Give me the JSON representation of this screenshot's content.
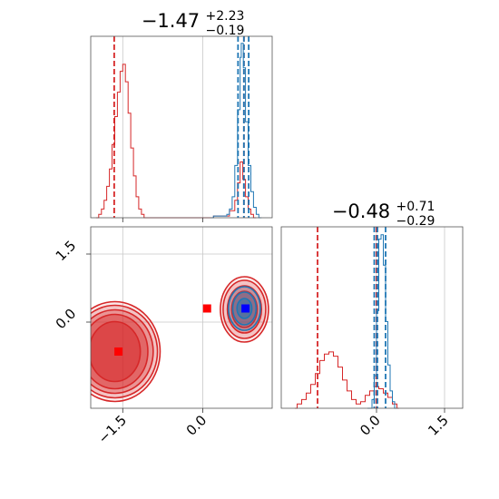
{
  "chart_data": [
    {
      "type": "histogram",
      "panel": "marginal-param-1",
      "title_value": "−1.47",
      "title_plus": "+2.23",
      "title_minus": "−0.19",
      "xlim": [
        -2.1,
        1.3
      ],
      "grid": true,
      "series": [
        {
          "color": "#d62728",
          "bins": [
            [
              -2.0,
              0.0
            ],
            [
              -1.95,
              0.02
            ],
            [
              -1.9,
              0.05
            ],
            [
              -1.85,
              0.1
            ],
            [
              -1.8,
              0.18
            ],
            [
              -1.75,
              0.28
            ],
            [
              -1.7,
              0.42
            ],
            [
              -1.65,
              0.58
            ],
            [
              -1.6,
              0.72
            ],
            [
              -1.55,
              0.84
            ],
            [
              -1.5,
              0.88
            ],
            [
              -1.45,
              0.78
            ],
            [
              -1.4,
              0.6
            ],
            [
              -1.35,
              0.4
            ],
            [
              -1.3,
              0.24
            ],
            [
              -1.25,
              0.12
            ],
            [
              -1.2,
              0.05
            ],
            [
              -1.15,
              0.02
            ],
            [
              -1.1,
              0.0
            ],
            [
              0.1,
              0.0
            ],
            [
              0.2,
              0.01
            ],
            [
              0.5,
              0.04
            ],
            [
              0.6,
              0.1
            ],
            [
              0.65,
              0.2
            ],
            [
              0.7,
              0.32
            ],
            [
              0.75,
              0.22
            ],
            [
              0.8,
              0.12
            ],
            [
              0.85,
              0.05
            ],
            [
              0.9,
              0.02
            ],
            [
              0.95,
              0.0
            ]
          ],
          "lines": [
            -1.66,
            0.77
          ]
        },
        {
          "color": "#1f77b4",
          "bins": [
            [
              0.15,
              0.0
            ],
            [
              0.2,
              0.01
            ],
            [
              0.45,
              0.02
            ],
            [
              0.5,
              0.05
            ],
            [
              0.55,
              0.12
            ],
            [
              0.6,
              0.3
            ],
            [
              0.65,
              0.62
            ],
            [
              0.7,
              0.92
            ],
            [
              0.72,
              1.0
            ],
            [
              0.76,
              0.86
            ],
            [
              0.8,
              0.55
            ],
            [
              0.85,
              0.3
            ],
            [
              0.9,
              0.15
            ],
            [
              0.95,
              0.06
            ],
            [
              1.0,
              0.02
            ],
            [
              1.05,
              0.0
            ]
          ],
          "lines": [
            0.66,
            0.77,
            0.86
          ]
        }
      ]
    },
    {
      "type": "contour",
      "panel": "joint",
      "xlim": [
        -2.1,
        1.3
      ],
      "ylim": [
        -1.9,
        2.1
      ],
      "xticks": [
        "−1.5",
        "0.0"
      ],
      "yticks": [
        "0.0",
        "1.5"
      ],
      "x_tick_values": [
        -1.5,
        0.0
      ],
      "y_tick_values": [
        0.0,
        1.5
      ],
      "grid": true,
      "series": [
        {
          "color": "#d62728",
          "clusters": [
            {
              "cx": -1.65,
              "cy": -0.65,
              "levels": [
                [
                  0.85,
                  1.1
                ],
                [
                  0.8,
                  1.02
                ],
                [
                  0.72,
                  0.92
                ],
                [
                  0.62,
                  0.82
                ],
                [
                  0.48,
                  0.66
                ]
              ]
            },
            {
              "cx": 0.78,
              "cy": 0.28,
              "levels": [
                [
                  0.45,
                  0.72
                ],
                [
                  0.4,
                  0.64
                ],
                [
                  0.32,
                  0.52
                ],
                [
                  0.24,
                  0.4
                ]
              ]
            }
          ],
          "markers": [
            [
              -1.58,
              -0.65
            ],
            [
              0.08,
              0.3
            ]
          ]
        },
        {
          "color": "#1f77b4",
          "clusters": [
            {
              "cx": 0.78,
              "cy": 0.3,
              "levels": [
                [
                  0.3,
                  0.48
                ],
                [
                  0.22,
                  0.36
                ],
                [
                  0.14,
                  0.22
                ]
              ]
            }
          ],
          "markers": [
            [
              0.8,
              0.3
            ]
          ]
        }
      ]
    },
    {
      "type": "histogram",
      "panel": "marginal-param-2",
      "title_value": "−0.48",
      "title_plus": "+0.71",
      "title_minus": "−0.29",
      "xlim": [
        -2.1,
        1.9
      ],
      "xticks": [
        "0.0",
        "1.5"
      ],
      "x_tick_values": [
        0.0,
        1.5
      ],
      "grid": true,
      "series": [
        {
          "color": "#d62728",
          "bins": [
            [
              -1.8,
              0.0
            ],
            [
              -1.75,
              0.02
            ],
            [
              -1.65,
              0.04
            ],
            [
              -1.55,
              0.07
            ],
            [
              -1.45,
              0.11
            ],
            [
              -1.35,
              0.16
            ],
            [
              -1.25,
              0.22
            ],
            [
              -1.15,
              0.25
            ],
            [
              -1.05,
              0.26
            ],
            [
              -0.95,
              0.24
            ],
            [
              -0.85,
              0.19
            ],
            [
              -0.75,
              0.13
            ],
            [
              -0.65,
              0.08
            ],
            [
              -0.55,
              0.04
            ],
            [
              -0.45,
              0.02
            ],
            [
              -0.35,
              0.03
            ],
            [
              -0.25,
              0.06
            ],
            [
              -0.15,
              0.08
            ],
            [
              -0.05,
              0.1
            ],
            [
              0.05,
              0.09
            ],
            [
              0.15,
              0.07
            ],
            [
              0.25,
              0.05
            ],
            [
              0.35,
              0.02
            ],
            [
              0.45,
              0.0
            ]
          ],
          "lines": [
            -1.3,
            0.0
          ]
        },
        {
          "color": "#1f77b4",
          "bins": [
            [
              -0.2,
              0.0
            ],
            [
              -0.1,
              0.04
            ],
            [
              -0.05,
              0.15
            ],
            [
              0.0,
              0.45
            ],
            [
              0.05,
              0.78
            ],
            [
              0.1,
              0.8
            ],
            [
              0.15,
              0.66
            ],
            [
              0.2,
              0.4
            ],
            [
              0.25,
              0.2
            ],
            [
              0.3,
              0.08
            ],
            [
              0.35,
              0.03
            ],
            [
              0.4,
              0.0
            ]
          ],
          "lines": [
            -0.05,
            0.02,
            0.2
          ]
        }
      ]
    }
  ]
}
